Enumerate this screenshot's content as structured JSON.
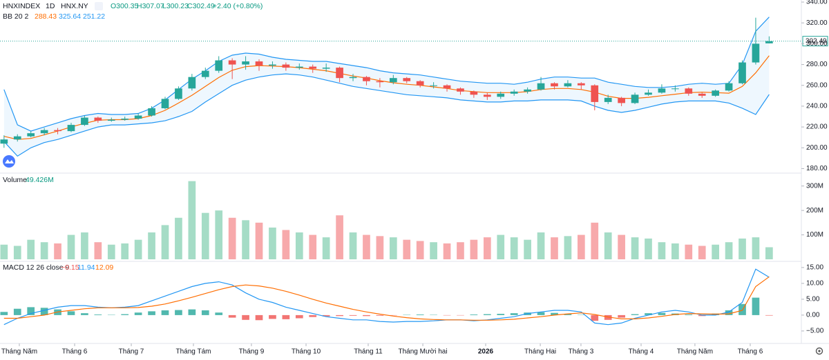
{
  "chart_data": {
    "type": "candlestick",
    "symbol": "HNXINDEX",
    "interval": "1D",
    "exchange": "HNX.NY",
    "ohlc_legend": [
      "O300.35",
      "H307.07",
      "L300.23",
      "C302.49",
      "+2.40 (+0.80%)"
    ],
    "bb_legend": {
      "name": "BB 20 2",
      "middle": "288.43",
      "upper": "325.64",
      "lower": "251.22"
    },
    "volume_legend": {
      "name": "Volume",
      "value": "49.426M"
    },
    "macd_legend": {
      "name": "MACD 12 26 close 9",
      "hist": "−0.15",
      "macd": "11.94",
      "signal": "12.09"
    },
    "up_color": "#26a69a",
    "down_color": "#ef5350",
    "bb_band_color": "#2196f3",
    "bb_basis_color": "#ff6d00",
    "categories": [
      null,
      null,
      null,
      null,
      null,
      null,
      null,
      null,
      null,
      null,
      null,
      null,
      null,
      null,
      null,
      null,
      null,
      null,
      null,
      null,
      null,
      null,
      null,
      null,
      null,
      null,
      null,
      null,
      null,
      null,
      null,
      null,
      null,
      null,
      null,
      null,
      null,
      null,
      null,
      null,
      null,
      null,
      null,
      null,
      null,
      null,
      null,
      null,
      null,
      null,
      null,
      null,
      null,
      null,
      null,
      null,
      null,
      null
    ],
    "open": [
      204,
      208,
      211,
      214,
      217,
      216,
      222,
      229,
      226,
      227,
      228,
      231,
      238,
      247,
      257,
      268,
      274,
      284,
      280,
      283,
      279,
      280,
      277,
      278,
      276,
      277,
      267,
      268,
      264,
      263,
      267,
      264,
      260,
      260,
      257,
      254,
      251,
      249,
      252,
      254,
      256,
      262,
      259,
      262,
      260,
      244,
      248,
      243,
      251,
      253,
      257,
      257,
      252,
      250,
      255,
      262,
      282,
      300.35
    ],
    "high": [
      212,
      213,
      216,
      219,
      219,
      224,
      231,
      230,
      229,
      230,
      233,
      240,
      249,
      259,
      271,
      277,
      288,
      286,
      288,
      285,
      283,
      282,
      281,
      280,
      281,
      278,
      271,
      269,
      267,
      270,
      268,
      265,
      263,
      261,
      258,
      255,
      253,
      254,
      256,
      258,
      268,
      263,
      265,
      263,
      261,
      251,
      249,
      253,
      256,
      261,
      260,
      258,
      253,
      256,
      264,
      284,
      325,
      307.07
    ],
    "low": [
      200,
      206,
      210,
      212,
      213,
      215,
      221,
      224,
      225,
      226,
      227,
      230,
      237,
      246,
      255,
      266,
      272,
      266,
      275,
      274,
      276,
      274,
      275,
      272,
      273,
      263,
      264,
      260,
      258,
      261,
      262,
      258,
      257,
      254,
      251,
      248,
      246,
      247,
      250,
      252,
      255,
      256,
      258,
      256,
      236,
      242,
      240,
      242,
      250,
      252,
      254,
      250,
      248,
      249,
      254,
      261,
      280,
      300.23
    ],
    "close": [
      208,
      211,
      214,
      217,
      216,
      222,
      229,
      226,
      227,
      228,
      231,
      238,
      247,
      257,
      268,
      274,
      284,
      280,
      283,
      279,
      280,
      277,
      278,
      276,
      277,
      267,
      268,
      264,
      263,
      267,
      264,
      260,
      260,
      257,
      254,
      251,
      249,
      252,
      254,
      256,
      262,
      259,
      262,
      260,
      244,
      248,
      243,
      251,
      253,
      257,
      257,
      252,
      250,
      255,
      262,
      282,
      300,
      302.49
    ],
    "bb_upper": [
      256,
      222,
      216,
      220,
      224,
      228,
      231,
      233,
      232,
      232,
      233,
      238,
      246,
      256,
      266,
      274,
      283,
      289,
      291,
      290,
      287,
      285,
      284,
      283,
      283,
      281,
      279,
      277,
      274,
      272,
      271,
      270,
      268,
      266,
      264,
      263,
      262,
      262,
      261,
      263,
      266,
      268,
      268,
      267,
      267,
      263,
      261,
      259,
      258,
      258,
      259,
      261,
      262,
      261,
      262,
      280,
      312,
      325.64
    ],
    "bb_middle": [
      211,
      208,
      209,
      212.5,
      216,
      220,
      223.5,
      226.5,
      227,
      227,
      228,
      231,
      236,
      243,
      250.5,
      259,
      267.5,
      274.5,
      278,
      279,
      278.5,
      278,
      277,
      275.5,
      274,
      271.5,
      269,
      267,
      264.5,
      262.5,
      261,
      260,
      258.5,
      257,
      255,
      254,
      253,
      253,
      253,
      254,
      256,
      257,
      257,
      256,
      253.5,
      249.5,
      247.5,
      247.5,
      248.5,
      250,
      251.5,
      253,
      253.5,
      253,
      252.5,
      259,
      272,
      288.43
    ],
    "bb_lower": [
      206,
      192,
      200,
      205,
      208,
      212,
      216,
      220,
      222,
      222,
      223,
      224,
      226,
      230,
      235,
      244,
      252,
      260,
      265,
      268,
      270,
      271,
      270,
      268,
      265,
      262,
      259,
      257,
      255,
      253,
      251,
      250,
      249,
      248,
      246,
      245,
      244,
      244,
      245,
      245,
      246,
      246,
      246,
      245,
      240,
      236,
      234,
      236,
      239,
      242,
      244,
      245,
      245,
      245,
      243,
      238,
      232,
      251.22
    ],
    "ylim": [
      177,
      342
    ],
    "yticks": [
      {
        "value": 180,
        "label": "180.00"
      },
      {
        "value": 200,
        "label": "200.00"
      },
      {
        "value": 220,
        "label": "220.00"
      },
      {
        "value": 240,
        "label": "240.00"
      },
      {
        "value": 260,
        "label": "260.00"
      },
      {
        "value": 280,
        "label": "280.00"
      },
      {
        "value": 300,
        "label": "300.00"
      },
      {
        "value": 320,
        "label": "320.00"
      },
      {
        "value": 340,
        "label": "340.00"
      }
    ],
    "last_price_label": "302.49",
    "volume": [
      60,
      55,
      80,
      70,
      65,
      100,
      110,
      70,
      60,
      65,
      80,
      110,
      140,
      170,
      320,
      190,
      200,
      170,
      160,
      150,
      130,
      120,
      110,
      100,
      90,
      180,
      110,
      100,
      95,
      90,
      80,
      75,
      70,
      65,
      70,
      80,
      90,
      100,
      90,
      80,
      110,
      90,
      95,
      100,
      150,
      110,
      100,
      90,
      85,
      70,
      65,
      60,
      55,
      60,
      70,
      85,
      90,
      49.426
    ],
    "volume_up_color": "#a5dcc6",
    "volume_down_color": "#f7a9ab",
    "volume_ylim": [
      0,
      350
    ],
    "volume_yticks": [
      {
        "value": 100,
        "label": "100M"
      },
      {
        "value": 200,
        "label": "200M"
      },
      {
        "value": 300,
        "label": "300M"
      }
    ],
    "macd": [
      -3,
      -1,
      0.5,
      1.5,
      2.5,
      3,
      3,
      2.5,
      2.3,
      2.5,
      3,
      4.5,
      6,
      7.5,
      9,
      10,
      10.5,
      9.5,
      7,
      5,
      4,
      2.5,
      1.5,
      0.5,
      -0.5,
      -1,
      -1.5,
      -1.5,
      -2,
      -2.2,
      -2,
      -2,
      -1.8,
      -1.5,
      -1.5,
      -1.8,
      -1.5,
      -1,
      -0.5,
      0.5,
      1,
      1.5,
      1.5,
      1,
      -2.5,
      -3,
      -2.5,
      -1,
      0,
      1,
      1.5,
      1,
      0,
      0,
      1,
      4,
      14.5,
      11.94
    ],
    "signal": [
      -1,
      -1,
      -0.5,
      0,
      1,
      1.5,
      2,
      2.3,
      2.3,
      2.3,
      2.4,
      2.8,
      3.5,
      4.5,
      5.6,
      6.8,
      8,
      9,
      9.5,
      9.2,
      8.5,
      7.5,
      6.3,
      5,
      3.8,
      2.8,
      1.8,
      1,
      0.3,
      -0.3,
      -0.8,
      -1.2,
      -1.4,
      -1.5,
      -1.5,
      -1.6,
      -1.6,
      -1.5,
      -1.3,
      -0.9,
      -0.5,
      0,
      0.4,
      0.7,
      0.2,
      -0.6,
      -1.2,
      -1.2,
      -0.9,
      -0.4,
      0.2,
      0.5,
      0.4,
      0.3,
      0.4,
      1.5,
      9,
      12.09
    ],
    "hist": [
      1,
      2,
      2.5,
      2.3,
      1.8,
      1.2,
      0.6,
      0.2,
      0.1,
      0.3,
      0.8,
      1.2,
      1.5,
      1.6,
      1.8,
      1.5,
      0.8,
      -0.8,
      -1.5,
      -1.6,
      -1.2,
      -1.3,
      -1,
      -0.6,
      -0.4,
      -0.3,
      -0.2,
      -0.3,
      -0.2,
      -0.1,
      0.1,
      0.2,
      0.1,
      -0.1,
      -0.1,
      0.2,
      0.3,
      0.4,
      0.6,
      0.8,
      0.9,
      0.7,
      0.4,
      0.1,
      -1.8,
      -1.5,
      -0.8,
      0.3,
      0.6,
      0.7,
      0.5,
      0.2,
      -0.3,
      0.5,
      1.5,
      3.5,
      5.5,
      -0.15
    ],
    "macd_color": "#2196f3",
    "signal_color": "#ff6d00",
    "hist_up_color": "#26a69a",
    "hist_down_color": "#ef5350",
    "macd_ylim": [
      -8.5,
      16.5
    ],
    "macd_yticks": [
      {
        "value": -5,
        "label": "−5.00"
      },
      {
        "value": 0,
        "label": "0.00"
      },
      {
        "value": 5,
        "label": "5.00"
      },
      {
        "value": 10,
        "label": "10.00"
      },
      {
        "value": 15,
        "label": "15.00"
      }
    ],
    "xlim": [
      -0.3,
      59.4
    ],
    "xticks": [
      {
        "value": 1.14,
        "label": "Tháng Năm"
      },
      {
        "value": 5.26,
        "label": "Tháng 6"
      },
      {
        "value": 9.48,
        "label": "Tháng 7"
      },
      {
        "value": 14.11,
        "label": "Tháng Tám"
      },
      {
        "value": 18.43,
        "label": "Tháng 9"
      },
      {
        "value": 22.5,
        "label": "Tháng 10"
      },
      {
        "value": 27.13,
        "label": "Tháng 11"
      },
      {
        "value": 31.2,
        "label": "Tháng Mười hai"
      },
      {
        "value": 35.88,
        "label": "2026"
      },
      {
        "value": 39.95,
        "label": "Tháng Hai"
      },
      {
        "value": 42.98,
        "label": "Tháng 3"
      },
      {
        "value": 47.46,
        "label": "Tháng 4"
      },
      {
        "value": 51.47,
        "label": "Tháng Năm"
      },
      {
        "value": 55.59,
        "label": "Tháng 6"
      }
    ]
  }
}
